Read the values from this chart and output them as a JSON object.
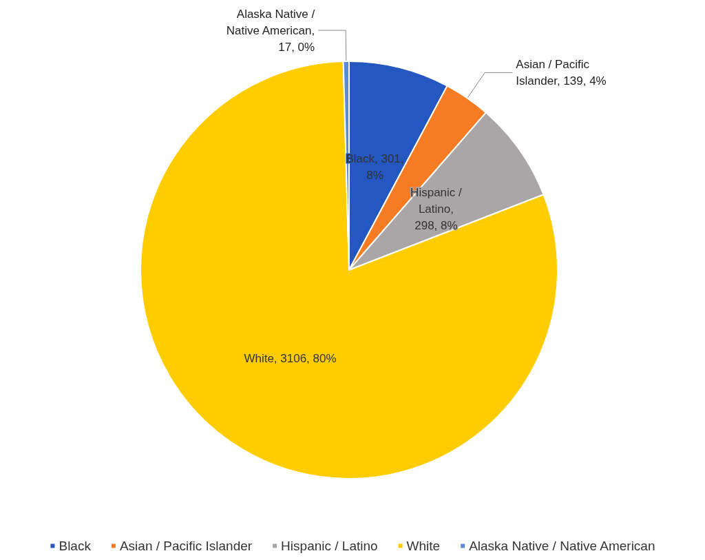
{
  "chart_data": {
    "type": "pie",
    "categories": [
      "Black",
      "Asian / Pacific Islander",
      "Hispanic / Latino",
      "White",
      "Alaska Native / Native American"
    ],
    "values": [
      301,
      139,
      298,
      3106,
      17
    ],
    "colors": [
      "#2457c0",
      "#f57c22",
      "#aaa5a7",
      "#ffcc00",
      "#5b8bd6"
    ],
    "value_labels": [
      "Black, 301, 8%",
      "Asian / Pacific Islander, 139, 4%",
      "Hispanic / Latino, 298, 8%",
      "White, 3106, 80%",
      "Alaska Native / Native American, 17, 0%"
    ],
    "legend": "bottom"
  }
}
